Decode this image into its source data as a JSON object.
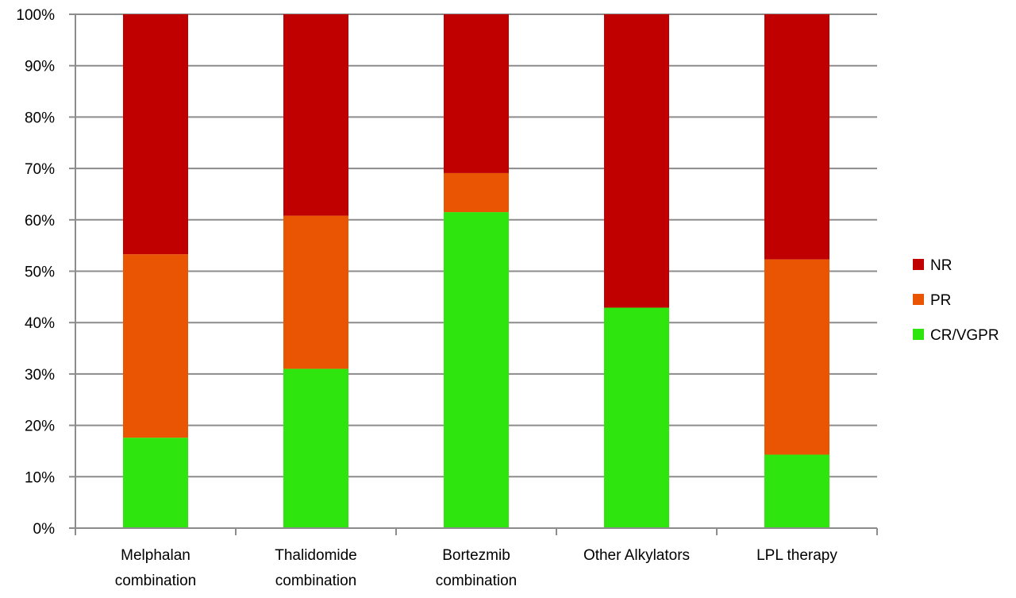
{
  "chart_data": {
    "type": "bar",
    "stacked": true,
    "percent_stacked": true,
    "categories": [
      [
        "Melphalan",
        "combination"
      ],
      [
        "Thalidomide",
        "combination"
      ],
      [
        "Bortezmib",
        "combination"
      ],
      [
        "Other Alkylators"
      ],
      [
        "LPL therapy"
      ]
    ],
    "series": [
      {
        "name": "CR/VGPR",
        "color": "#2ee60e",
        "values": [
          17.6,
          31.0,
          61.5,
          42.9,
          14.3
        ]
      },
      {
        "name": "PR",
        "color": "#ea5504",
        "values": [
          35.7,
          29.8,
          7.6,
          0.0,
          38.0
        ]
      },
      {
        "name": "NR",
        "color": "#c00000",
        "values": [
          46.7,
          39.2,
          30.9,
          57.1,
          47.7
        ]
      }
    ],
    "legend_order": [
      "NR",
      "PR",
      "CR/VGPR"
    ],
    "legend_position": "right",
    "yticks": [
      "0%",
      "10%",
      "20%",
      "30%",
      "40%",
      "50%",
      "60%",
      "70%",
      "80%",
      "90%",
      "100%"
    ],
    "ylim": [
      0,
      100
    ],
    "grid": true,
    "title": "",
    "xlabel": "",
    "ylabel": ""
  }
}
